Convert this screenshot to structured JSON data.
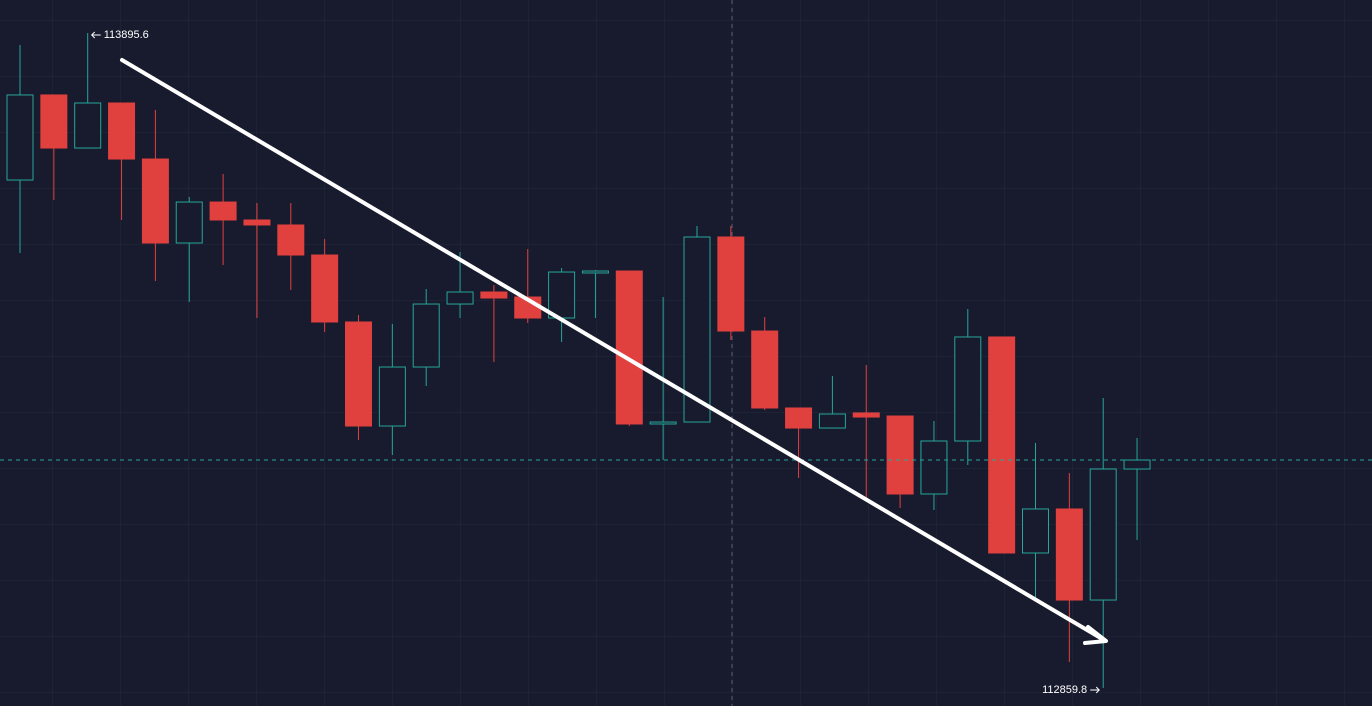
{
  "chart_data": {
    "type": "candlestick",
    "up_color": "#26a69a",
    "down_color": "#e0413f",
    "open": [
      113663.1,
      113797.6,
      113713.7,
      113784.9,
      113696.3,
      113563.5,
      113628.3,
      113599.9,
      113592.0,
      113544.5,
      113438.6,
      113274.1,
      113367.4,
      113467.0,
      113486.0,
      113478.1,
      113444.9,
      113516.1,
      113519.2,
      113277.3,
      113280.4,
      113573.0,
      113424.3,
      113302.6,
      113270.9,
      113294.7,
      113289.9,
      113166.6,
      113250.4,
      113414.9,
      113073.3,
      113142.9,
      112998.9,
      113206.1
    ],
    "high": [
      113876.6,
      113797.6,
      113895.6,
      113784.9,
      113773.8,
      113636.3,
      113672.6,
      113626.8,
      113626.8,
      113569.8,
      113449.6,
      113435.4,
      113490.8,
      113549.3,
      113497.1,
      113554.0,
      113524.0,
      113520.8,
      113519.2,
      113478.1,
      113590.4,
      113590.4,
      113446.5,
      113302.6,
      113353.2,
      113370.6,
      113289.9,
      113282.0,
      113459.1,
      113414.9,
      113247.2,
      113199.8,
      113318.4,
      113255.1
    ],
    "low": [
      113547.7,
      113631.5,
      113713.7,
      113599.9,
      113503.4,
      113470.2,
      113528.7,
      113444.9,
      113489.2,
      113422.8,
      113252.0,
      113228.3,
      113337.4,
      113444.9,
      113375.3,
      113437.0,
      113406.9,
      113444.9,
      113274.1,
      113220.3,
      113280.4,
      113410.1,
      113299.4,
      113191.9,
      113270.9,
      113157.1,
      113144.4,
      113141.3,
      113212.4,
      113073.3,
      112998.9,
      112900.9,
      112859.8,
      113093.8
    ],
    "close": [
      113797.6,
      113713.7,
      113784.9,
      113696.3,
      113563.5,
      113628.3,
      113599.9,
      113592.0,
      113544.5,
      113438.6,
      113274.1,
      113367.4,
      113467.0,
      113486.0,
      113476.5,
      113444.9,
      113517.6,
      113519.2,
      113277.3,
      113280.4,
      113573.0,
      113424.3,
      113302.6,
      113270.9,
      113293.1,
      113288.3,
      113166.6,
      113250.4,
      113414.9,
      113073.3,
      113142.9,
      112998.9,
      113206.1,
      113220.3
    ],
    "annotations": {
      "high": "113895.6",
      "low": "112859.8"
    }
  }
}
